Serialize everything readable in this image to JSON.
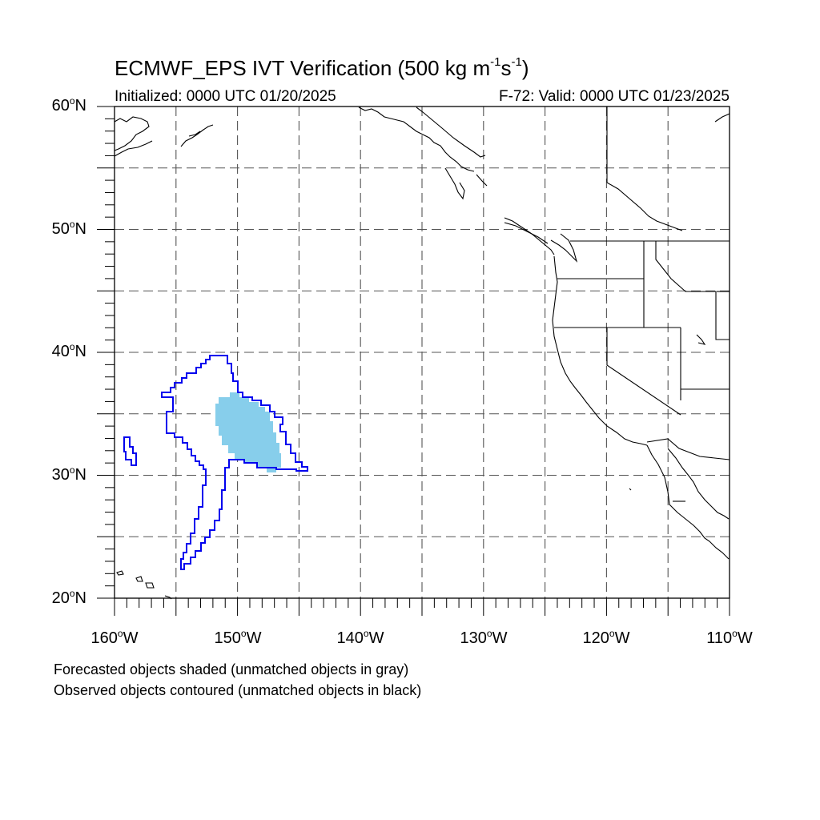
{
  "title": {
    "main_prefix": "ECMWF_EPS IVT Verification (500 kg m",
    "main_sup1": "-1",
    "main_mid": "s",
    "main_sup2": "-1",
    "main_suffix": ")",
    "initialized": "Initialized: 0000 UTC 01/20/2025",
    "valid": "F-72: Valid: 0000 UTC 01/23/2025"
  },
  "map": {
    "projection": "cylindrical equidistant",
    "lon_range": [
      -160,
      -110
    ],
    "lat_range": [
      20,
      60
    ],
    "grid": "dashed, every 5 degrees",
    "lat_ticks": [
      {
        "value": 60,
        "label": "60",
        "suffix": "N"
      },
      {
        "value": 50,
        "label": "50",
        "suffix": "N"
      },
      {
        "value": 40,
        "label": "40",
        "suffix": "N"
      },
      {
        "value": 30,
        "label": "30",
        "suffix": "N"
      },
      {
        "value": 20,
        "label": "20",
        "suffix": "N"
      }
    ],
    "lon_ticks": [
      {
        "value": -160,
        "label": "160",
        "suffix": "W"
      },
      {
        "value": -150,
        "label": "150",
        "suffix": "W"
      },
      {
        "value": -140,
        "label": "140",
        "suffix": "W"
      },
      {
        "value": -130,
        "label": "130",
        "suffix": "W"
      },
      {
        "value": -120,
        "label": "120",
        "suffix": "W"
      },
      {
        "value": -110,
        "label": "110",
        "suffix": "W"
      }
    ],
    "colors": {
      "forecast_fill": "#87ceeb",
      "observed_contour": "#0000ee",
      "coastline": "#000000",
      "grid": "#555555"
    },
    "forecast_object": {
      "label": "Forecasted IVT object (matched)",
      "approx_center": [
        -149.5,
        33.5
      ]
    },
    "observed_objects": [
      {
        "label": "Observed IVT object (matched, large)",
        "approx_center": [
          -150,
          32
        ]
      },
      {
        "label": "Observed IVT object (matched, small)",
        "approx_center": [
          -158,
          32.5
        ]
      }
    ]
  },
  "footnotes": {
    "line1": "Forecasted objects shaded (unmatched objects in gray)",
    "line2": "Observed objects contoured (unmatched objects in black)"
  }
}
